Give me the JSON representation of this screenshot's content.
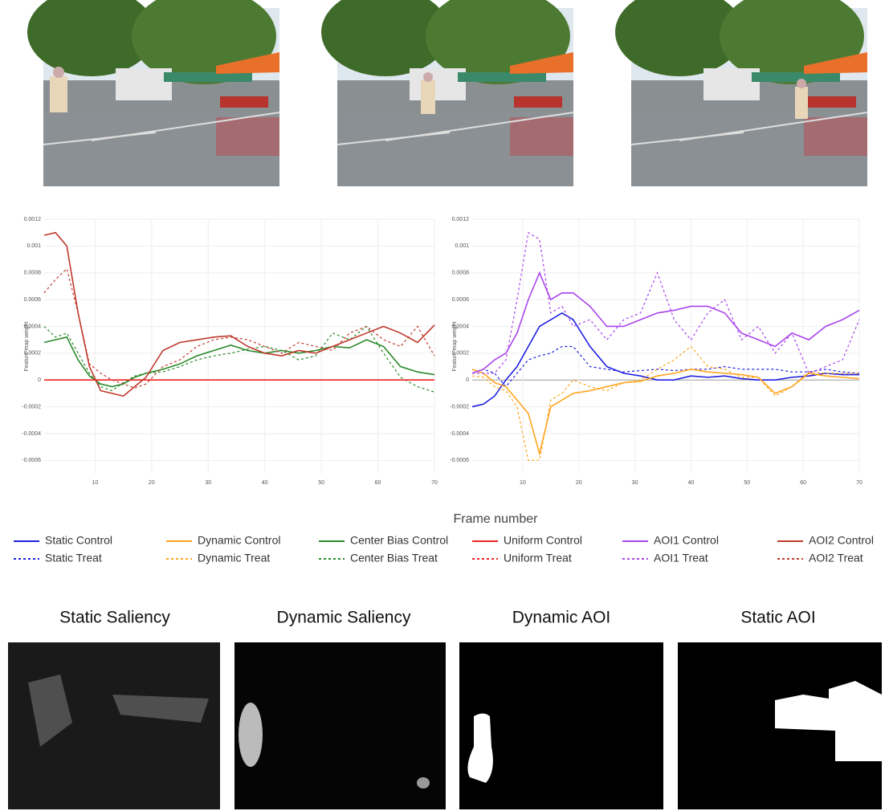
{
  "chart_data": [
    {
      "type": "line",
      "y_label": "Feature map weight",
      "x": [
        1,
        3,
        5,
        7,
        9,
        11,
        13,
        15,
        17,
        19,
        22,
        25,
        28,
        31,
        34,
        37,
        40,
        43,
        46,
        49,
        52,
        55,
        58,
        61,
        64,
        67,
        70
      ],
      "xlim": [
        1,
        70
      ],
      "xticks": [
        10,
        20,
        30,
        40,
        50,
        60,
        70
      ],
      "ylim": [
        -0.0007,
        0.0012
      ],
      "yticks": [
        0.0012,
        0.001,
        0.0008,
        0.0006,
        0.0004,
        0.0002,
        0,
        -0.0002,
        -0.0004,
        -0.0006
      ],
      "grid": true,
      "series": [
        {
          "name": "Center Bias Control",
          "color": "#2a8a2a",
          "dash": "solid",
          "values": [
            0.00028,
            0.0003,
            0.00032,
            0.00015,
            3e-05,
            -3e-05,
            -5e-05,
            -3e-05,
            2e-05,
            5e-05,
            8e-05,
            0.00012,
            0.00018,
            0.00022,
            0.00026,
            0.00022,
            0.0002,
            0.00022,
            0.0002,
            0.00022,
            0.00025,
            0.00024,
            0.0003,
            0.00025,
            0.0001,
            6e-05,
            4e-05
          ]
        },
        {
          "name": "Center Bias Treat",
          "color": "#2a8a2a",
          "dash": "dot",
          "values": [
            0.0004,
            0.00032,
            0.00035,
            0.0002,
            5e-05,
            -5e-05,
            -8e-05,
            -2e-05,
            3e-05,
            5e-05,
            6e-05,
            0.0001,
            0.00015,
            0.00018,
            0.0002,
            0.00023,
            0.00025,
            0.00022,
            0.00015,
            0.00018,
            0.00035,
            0.0003,
            0.0004,
            0.0002,
            2e-05,
            -5e-05,
            -9e-05
          ]
        },
        {
          "name": "Uniform Control",
          "color": "#ee2222",
          "dash": "solid",
          "values": [
            0,
            0,
            0,
            0,
            0,
            0,
            0,
            0,
            0,
            0,
            0,
            0,
            0,
            0,
            0,
            0,
            0,
            0,
            0,
            0,
            0,
            0,
            0,
            0,
            0,
            0,
            0
          ]
        },
        {
          "name": "Uniform Treat",
          "color": "#ee2222",
          "dash": "dot",
          "values": [
            0,
            0,
            0,
            0,
            0,
            0,
            0,
            0,
            0,
            0,
            0,
            0,
            0,
            0,
            0,
            0,
            0,
            0,
            0,
            0,
            0,
            0,
            0,
            0,
            0,
            0,
            0
          ]
        },
        {
          "name": "AOI2 Control",
          "color": "#c0392b",
          "dash": "solid",
          "values": [
            0.00108,
            0.0011,
            0.001,
            0.0005,
            0.0001,
            -8e-05,
            -0.0001,
            -0.00012,
            -5e-05,
            2e-05,
            0.00022,
            0.00028,
            0.0003,
            0.00032,
            0.00033,
            0.00025,
            0.0002,
            0.00018,
            0.00022,
            0.0002,
            0.00025,
            0.0003,
            0.00035,
            0.0004,
            0.00035,
            0.00028,
            0.00041
          ]
        },
        {
          "name": "AOI2 Treat",
          "color": "#c0392b",
          "dash": "dot",
          "values": [
            0.00065,
            0.00075,
            0.00083,
            0.0005,
            0.00012,
            5e-05,
            0,
            -3e-05,
            -6e-05,
            -3e-05,
            0.0001,
            0.00015,
            0.00025,
            0.0003,
            0.00032,
            0.0003,
            0.00025,
            0.0002,
            0.00028,
            0.00025,
            0.00022,
            0.00035,
            0.0004,
            0.0003,
            0.00025,
            0.0004,
            0.00018
          ]
        }
      ]
    },
    {
      "type": "line",
      "y_label": "Feature map weight",
      "x": [
        1,
        3,
        5,
        7,
        9,
        11,
        13,
        15,
        17,
        19,
        22,
        25,
        28,
        31,
        34,
        37,
        40,
        43,
        46,
        49,
        52,
        55,
        58,
        61,
        64,
        67,
        70
      ],
      "xlim": [
        1,
        70
      ],
      "xticks": [
        10,
        20,
        30,
        40,
        50,
        60,
        70
      ],
      "ylim": [
        -0.0007,
        0.0012
      ],
      "yticks": [
        0.0012,
        0.001,
        0.0008,
        0.0006,
        0.0004,
        0.0002,
        0,
        -0.0002,
        -0.0004,
        -0.0006
      ],
      "grid": true,
      "series": [
        {
          "name": "Static Control",
          "color": "#2020e0",
          "dash": "solid",
          "values": [
            -0.0002,
            -0.00018,
            -0.00012,
            0,
            0.0001,
            0.00025,
            0.0004,
            0.00045,
            0.0005,
            0.00045,
            0.00025,
            0.0001,
            5e-05,
            3e-05,
            0,
            0,
            3e-05,
            2e-05,
            3e-05,
            1e-05,
            0,
            0,
            2e-05,
            3e-05,
            5e-05,
            4e-05,
            4e-05
          ]
        },
        {
          "name": "Static Treat",
          "color": "#2020e0",
          "dash": "dot",
          "values": [
            5e-05,
            8e-05,
            5e-05,
            -5e-05,
            5e-05,
            0.00015,
            0.00018,
            0.0002,
            0.00025,
            0.00025,
            0.0001,
            8e-05,
            6e-05,
            7e-05,
            8e-05,
            7e-05,
            8e-05,
            8e-05,
            0.0001,
            8e-05,
            8e-05,
            8e-05,
            6e-05,
            6e-05,
            8e-05,
            6e-05,
            5e-05
          ]
        },
        {
          "name": "Dynamic Control",
          "color": "#ffa51f",
          "dash": "solid",
          "values": [
            8e-05,
            5e-05,
            -2e-05,
            -5e-05,
            -0.00015,
            -0.00025,
            -0.00055,
            -0.0002,
            -0.00015,
            -0.0001,
            -8e-05,
            -5e-05,
            -2e-05,
            -1e-05,
            3e-05,
            5e-05,
            8e-05,
            6e-05,
            5e-05,
            4e-05,
            2e-05,
            -0.0001,
            -5e-05,
            5e-05,
            3e-05,
            2e-05,
            1e-05
          ]
        },
        {
          "name": "Dynamic Treat",
          "color": "#ffa51f",
          "dash": "dot",
          "values": [
            3e-05,
            2e-05,
            -5e-05,
            -8e-05,
            -0.0002,
            -0.0006,
            -0.0006,
            -0.00015,
            -0.0001,
            0,
            -5e-05,
            -8e-05,
            -2e-05,
            0,
            8e-05,
            0.00015,
            0.00025,
            0.0001,
            8e-05,
            2e-05,
            2e-05,
            -0.00012,
            -5e-05,
            6e-05,
            5e-05,
            5e-05,
            5e-05
          ]
        },
        {
          "name": "AOI1 Control",
          "color": "#aa44ee",
          "dash": "solid",
          "values": [
            5e-05,
            8e-05,
            0.00015,
            0.0002,
            0.00035,
            0.0006,
            0.0008,
            0.0006,
            0.00065,
            0.00065,
            0.00055,
            0.0004,
            0.0004,
            0.00045,
            0.0005,
            0.00052,
            0.00055,
            0.00055,
            0.0005,
            0.00035,
            0.0003,
            0.00025,
            0.00035,
            0.0003,
            0.0004,
            0.00045,
            0.00052
          ]
        },
        {
          "name": "AOI1 Treat",
          "color": "#aa44ee",
          "dash": "dot",
          "values": [
            5e-05,
            5e-05,
            5e-05,
            0.00015,
            0.0006,
            0.0011,
            0.00105,
            0.0005,
            0.00055,
            0.0004,
            0.00045,
            0.0003,
            0.00045,
            0.0005,
            0.0008,
            0.00045,
            0.0003,
            0.0005,
            0.0006,
            0.0003,
            0.0004,
            0.0002,
            0.00035,
            5e-05,
            0.0001,
            0.00015,
            0.00045
          ]
        }
      ]
    }
  ],
  "x_axis_title": "Frame number",
  "saliency_maps": {
    "titles": [
      "Static Saliency",
      "Dynamic Saliency",
      "Dynamic AOI",
      "Static AOI"
    ]
  }
}
